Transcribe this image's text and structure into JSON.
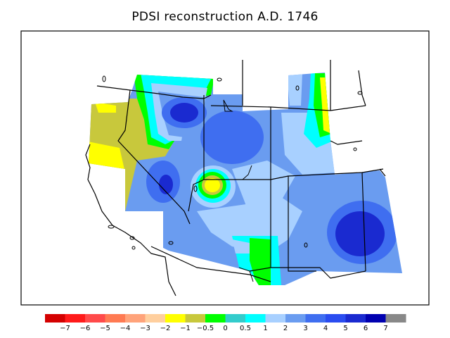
{
  "title": "PDSI reconstruction A.D. 1746",
  "legend": {
    "colors": [
      "#d40000",
      "#ff1a1a",
      "#ff4a4a",
      "#ff7a52",
      "#ffa37a",
      "#ffcf9e",
      "#ffff00",
      "#c8c83c",
      "#00ff00",
      "#33cccc",
      "#00ffff",
      "#a8d0ff",
      "#6a9cf0",
      "#3f6ef0",
      "#2a4cf0",
      "#1a2ad0",
      "#0000b0",
      "#888888"
    ],
    "labels": [
      "−7",
      "−6",
      "−5",
      "−4",
      "−3",
      "−2",
      "−1",
      "−0.5",
      "0",
      "0.5",
      "1",
      "2",
      "3",
      "4",
      "5",
      "6",
      "7"
    ]
  }
}
